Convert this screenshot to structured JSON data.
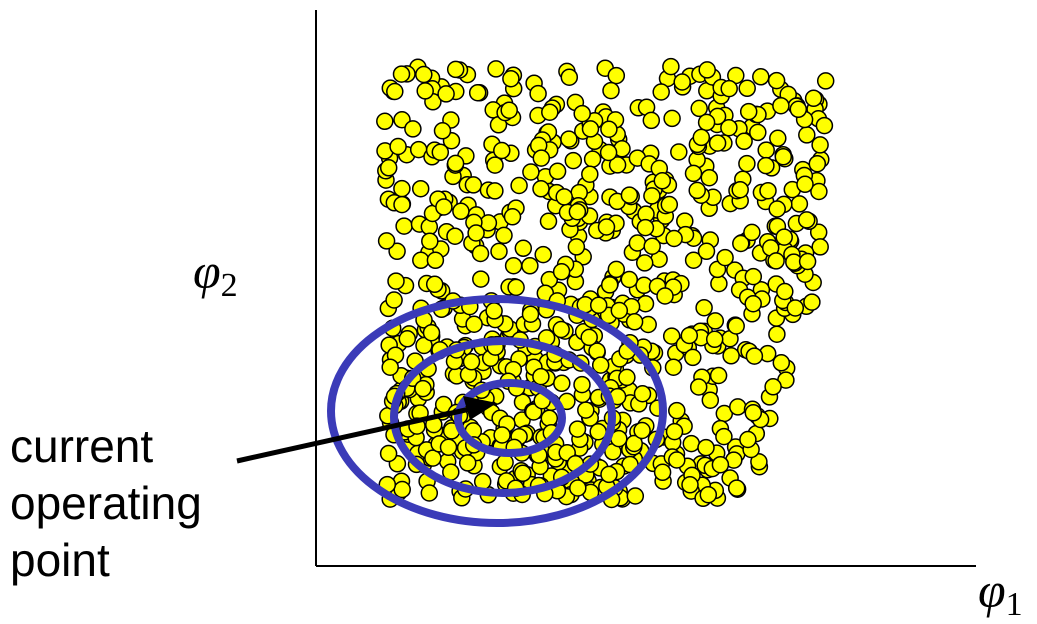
{
  "labels": {
    "y_axis": {
      "symbol": "φ",
      "subscript": "2"
    },
    "x_axis": {
      "symbol": "φ",
      "subscript": "1"
    },
    "callout": {
      "line1": "current",
      "line2": "operating",
      "line3": "point"
    }
  },
  "colors": {
    "point_fill": "#FFFF00",
    "point_stroke": "#000000",
    "contour": "#3B3BB8",
    "axis": "#000000",
    "arrow": "#000000"
  }
}
